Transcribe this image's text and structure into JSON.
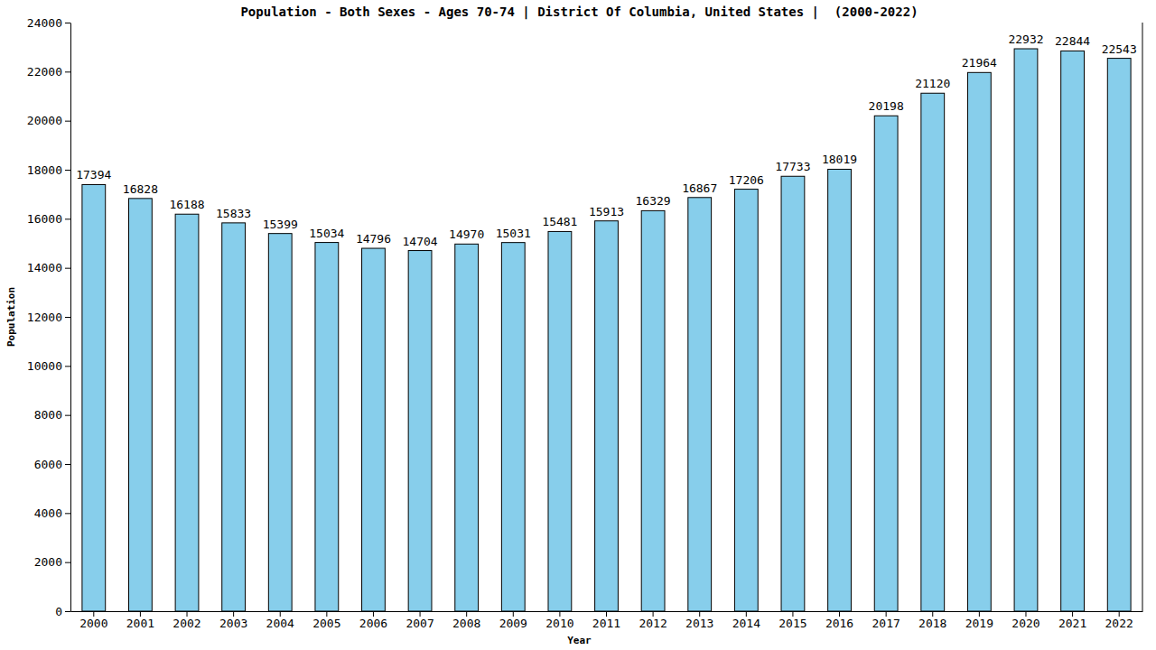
{
  "chart_data": {
    "type": "bar",
    "title": "Population - Both Sexes - Ages 70-74 | District Of Columbia, United States |  (2000-2022)",
    "x_label": "Year",
    "y_label": "Population",
    "categories": [
      "2000",
      "2001",
      "2002",
      "2003",
      "2004",
      "2005",
      "2006",
      "2007",
      "2008",
      "2009",
      "2010",
      "2011",
      "2012",
      "2013",
      "2014",
      "2015",
      "2016",
      "2017",
      "2018",
      "2019",
      "2020",
      "2021",
      "2022"
    ],
    "values": [
      17394,
      16828,
      16188,
      15833,
      15399,
      15034,
      14796,
      14704,
      14970,
      15031,
      15481,
      15913,
      16329,
      16867,
      17206,
      17733,
      18019,
      20198,
      21120,
      21964,
      22932,
      22844,
      22543
    ],
    "color": "#87ceeb",
    "ylim": [
      0,
      24000
    ],
    "yticks": [
      0,
      2000,
      4000,
      6000,
      8000,
      10000,
      12000,
      14000,
      16000,
      18000,
      20000,
      22000,
      24000
    ],
    "data_labels": true
  }
}
